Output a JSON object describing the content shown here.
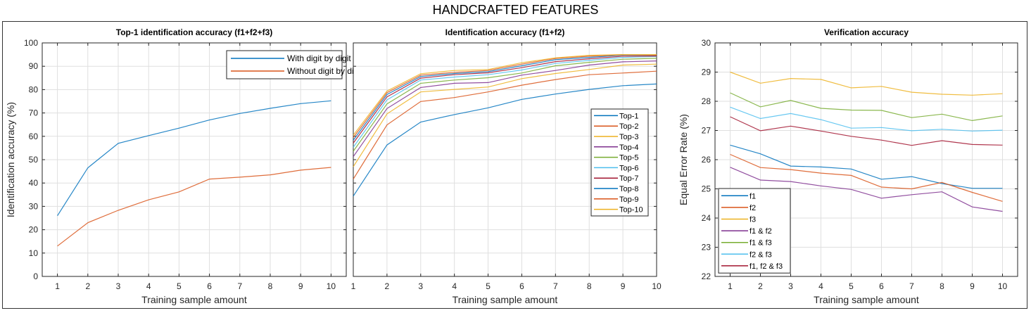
{
  "figure_title": "HANDCRAFTED FEATURES",
  "chart_data": [
    {
      "type": "line",
      "title": "Top-1 identification accuracy (f1+f2+f3)",
      "xlabel": "Training sample amount",
      "ylabel": "Identification accuracy (%)",
      "xlim": [
        0.5,
        10.5
      ],
      "ylim": [
        0,
        100
      ],
      "xticks": [
        1,
        2,
        3,
        4,
        5,
        6,
        7,
        8,
        9,
        10
      ],
      "yticks": [
        0,
        10,
        20,
        30,
        40,
        50,
        60,
        70,
        80,
        90,
        100
      ],
      "grid": true,
      "legend_placement": "top-right",
      "x": [
        1,
        2,
        3,
        4,
        5,
        6,
        7,
        8,
        9,
        10
      ],
      "series": [
        {
          "name": "With digit by digit",
          "color": "#0072BD",
          "values": [
            26,
            46.5,
            57,
            60.3,
            63.5,
            67,
            69.8,
            72,
            74,
            75.2
          ]
        },
        {
          "name": "Without digit by digit",
          "color": "#D95319",
          "values": [
            13,
            23,
            28.3,
            32.8,
            36.2,
            41.7,
            42.5,
            43.5,
            45.5,
            46.7
          ]
        }
      ]
    },
    {
      "type": "line",
      "title": "Identification accuracy (f1+f2)",
      "xlabel": "Training sample amount",
      "ylabel": "",
      "xlim": [
        1,
        10
      ],
      "ylim": [
        0,
        100
      ],
      "xticks": [
        1,
        2,
        3,
        4,
        5,
        6,
        7,
        8,
        9,
        10
      ],
      "yticks": [
        0,
        10,
        20,
        30,
        40,
        50,
        60,
        70,
        80,
        90,
        100
      ],
      "show_ytick_labels": false,
      "grid": true,
      "legend_placement": "right",
      "x": [
        1,
        2,
        3,
        4,
        5,
        6,
        7,
        8,
        9,
        10
      ],
      "series": [
        {
          "name": "Top-1",
          "color": "#0072BD",
          "values": [
            34.4,
            56.3,
            66.1,
            69.3,
            72.2,
            75.8,
            78.1,
            80.1,
            81.7,
            82.4
          ]
        },
        {
          "name": "Top-2",
          "color": "#D95319",
          "values": [
            41.7,
            64.9,
            74.9,
            76.6,
            79,
            81.9,
            84.3,
            86.4,
            87.1,
            87.9
          ]
        },
        {
          "name": "Top-3",
          "color": "#EDB120",
          "values": [
            47,
            69.6,
            79,
            80.1,
            81.1,
            84.7,
            86.9,
            88.6,
            90.5,
            90.9
          ]
        },
        {
          "name": "Top-4",
          "color": "#7E2F8E",
          "values": [
            51.3,
            71.9,
            80.9,
            82.7,
            83,
            86.2,
            88.2,
            90.5,
            91.9,
            92.3
          ]
        },
        {
          "name": "Top-5",
          "color": "#77AC30",
          "values": [
            53.6,
            73.9,
            82.7,
            84.1,
            85.1,
            87.1,
            90.2,
            91.7,
            93,
            93.4
          ]
        },
        {
          "name": "Top-6",
          "color": "#4DBEEE",
          "values": [
            55.3,
            75.6,
            84.1,
            85.4,
            86.4,
            88.4,
            91.2,
            92.5,
            93.8,
            94.2
          ]
        },
        {
          "name": "Top-7",
          "color": "#A2142F",
          "values": [
            57.1,
            76.9,
            84.9,
            86.4,
            87.2,
            89.4,
            92,
            93.2,
            94.3,
            94.4
          ]
        },
        {
          "name": "Top-8",
          "color": "#0072BD",
          "values": [
            58.3,
            77.9,
            85.6,
            86.9,
            87.7,
            90.2,
            92.8,
            93.8,
            94.8,
            94.8
          ]
        },
        {
          "name": "Top-9",
          "color": "#D95319",
          "values": [
            59.5,
            78.7,
            86.2,
            87.4,
            88.2,
            90.9,
            93.3,
            94.3,
            94.9,
            94.8
          ]
        },
        {
          "name": "Top-10",
          "color": "#EDB120",
          "values": [
            60.5,
            79.4,
            86.8,
            88.2,
            88.6,
            91.5,
            93.6,
            94.7,
            95,
            95
          ]
        }
      ]
    },
    {
      "type": "line",
      "title": "Verification accuracy",
      "xlabel": "Training sample amount",
      "ylabel": "Equal Error Rate (%)",
      "xlim": [
        0.5,
        10.5
      ],
      "ylim": [
        22,
        30
      ],
      "xticks": [
        1,
        2,
        3,
        4,
        5,
        6,
        7,
        8,
        9,
        10
      ],
      "yticks": [
        22,
        23,
        24,
        25,
        26,
        27,
        28,
        29,
        30
      ],
      "grid": true,
      "legend_placement": "bottom-left",
      "x": [
        1,
        2,
        3,
        4,
        5,
        6,
        7,
        8,
        9,
        10
      ],
      "series": [
        {
          "name": "f1",
          "color": "#0072BD",
          "values": [
            26.5,
            26.2,
            25.78,
            25.75,
            25.68,
            25.33,
            25.42,
            25.18,
            25.02,
            25.02
          ]
        },
        {
          "name": "f2",
          "color": "#D95319",
          "values": [
            26.18,
            25.73,
            25.66,
            25.54,
            25.46,
            25.06,
            25.0,
            25.22,
            24.88,
            24.57
          ]
        },
        {
          "name": "f3",
          "color": "#EDB120",
          "values": [
            29.0,
            28.62,
            28.78,
            28.75,
            28.46,
            28.51,
            28.31,
            28.24,
            28.21,
            28.26
          ]
        },
        {
          "name": "f1 & f2",
          "color": "#7E2F8E",
          "values": [
            25.74,
            25.3,
            25.25,
            25.1,
            24.98,
            24.68,
            24.8,
            24.9,
            24.38,
            24.23
          ]
        },
        {
          "name": "f1 & f3",
          "color": "#77AC30",
          "values": [
            28.29,
            27.81,
            28.03,
            27.76,
            27.7,
            27.69,
            27.44,
            27.56,
            27.34,
            27.5
          ]
        },
        {
          "name": "f2 & f3",
          "color": "#4DBEEE",
          "values": [
            27.8,
            27.41,
            27.58,
            27.37,
            27.08,
            27.1,
            26.99,
            27.04,
            26.98,
            27.01
          ]
        },
        {
          "name": "f1, f2 & f3",
          "color": "#A2142F",
          "values": [
            27.47,
            26.99,
            27.15,
            26.98,
            26.8,
            26.67,
            26.49,
            26.65,
            26.52,
            26.5
          ]
        }
      ]
    }
  ]
}
